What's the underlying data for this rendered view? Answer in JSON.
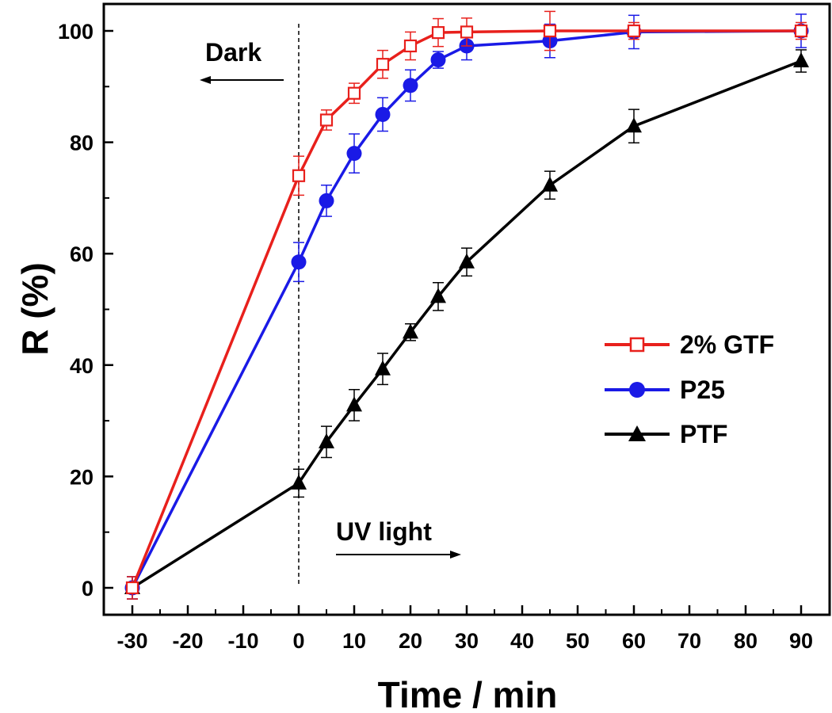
{
  "chart_data": {
    "type": "line",
    "title": "",
    "xlabel": "Time / min",
    "ylabel": "R (%)",
    "x_ticks": [
      -30,
      -20,
      -10,
      0,
      10,
      20,
      30,
      40,
      50,
      60,
      70,
      80,
      90
    ],
    "y_ticks": [
      0,
      20,
      40,
      60,
      80,
      100
    ],
    "xlim": [
      -33,
      94
    ],
    "ylim": [
      -5,
      105
    ],
    "legend_position": "right",
    "annotations": {
      "dark": "Dark",
      "uv": "UV light"
    },
    "divider_x": 0,
    "series": [
      {
        "name": "2% GTF",
        "color": "#e8201c",
        "marker": "open-square",
        "x": [
          -30,
          0,
          5,
          10,
          15,
          20,
          25,
          30,
          45,
          60,
          90
        ],
        "y": [
          0,
          74,
          84,
          88.8,
          94,
          97.3,
          99.7,
          99.8,
          100,
          100,
          100
        ],
        "err": [
          2,
          3.5,
          1.8,
          1.8,
          2.5,
          2.5,
          2.5,
          2.5,
          3.5,
          1.5,
          1.5
        ]
      },
      {
        "name": "P25",
        "color": "#1a1ae6",
        "marker": "filled-circle",
        "x": [
          -30,
          0,
          5,
          10,
          15,
          20,
          25,
          30,
          45,
          60,
          90
        ],
        "y": [
          0,
          58.5,
          69.5,
          78,
          85,
          90.2,
          94.8,
          97.3,
          98.2,
          99.8,
          100
        ],
        "err": [
          2,
          3.5,
          2.8,
          3.5,
          3,
          2.8,
          1.5,
          2.5,
          3,
          3,
          3
        ]
      },
      {
        "name": "PTF",
        "color": "#000000",
        "marker": "filled-triangle",
        "x": [
          -30,
          0,
          5,
          10,
          15,
          20,
          25,
          30,
          45,
          60,
          90
        ],
        "y": [
          0,
          18.8,
          26.2,
          32.8,
          39.3,
          45.9,
          52.3,
          58.5,
          72.3,
          82.9,
          94.6
        ],
        "err": [
          2,
          2.5,
          2.8,
          2.8,
          2.8,
          1.5,
          2.5,
          2.5,
          2.5,
          3,
          2
        ]
      }
    ]
  }
}
